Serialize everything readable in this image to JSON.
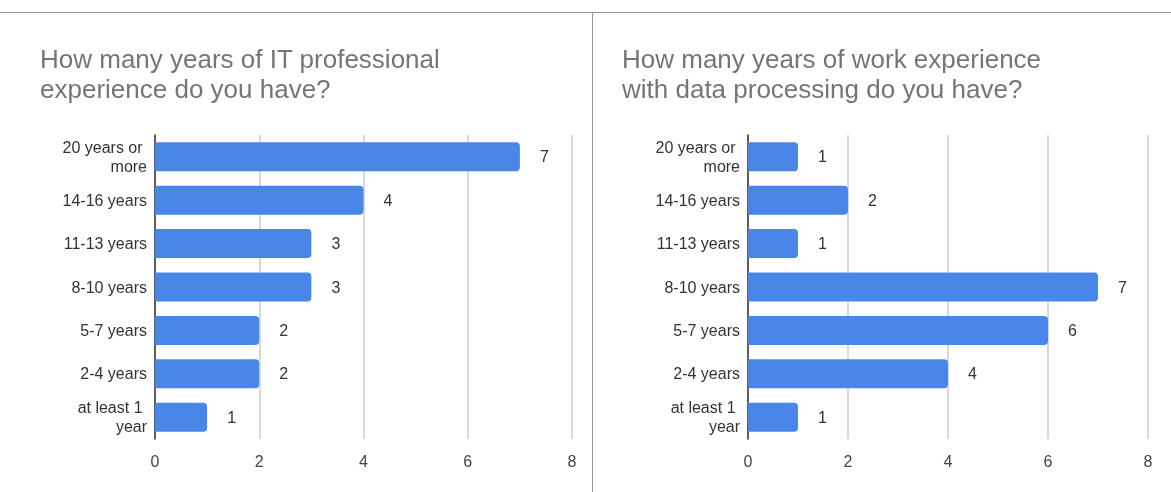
{
  "chart_data": [
    {
      "type": "bar",
      "orientation": "horizontal",
      "title": "How many years of IT professional experience do you have?",
      "categories": [
        "20 years or more",
        "14-16 years",
        "11-13 years",
        "8-10 years",
        "5-7 years",
        "2-4 years",
        "at least 1 year"
      ],
      "values": [
        7,
        4,
        3,
        3,
        2,
        2,
        1
      ],
      "color": "#4a86e8",
      "xlim": [
        0,
        8
      ],
      "xticks": [
        0,
        2,
        4,
        6,
        8
      ],
      "grid": "x",
      "data_labels": true
    },
    {
      "type": "bar",
      "orientation": "horizontal",
      "title": "How many years of work experience with data processing do you have?",
      "categories": [
        "20 years or more",
        "14-16 years",
        "11-13 years",
        "8-10 years",
        "5-7 years",
        "2-4 years",
        "at least 1 year"
      ],
      "values": [
        1,
        2,
        1,
        7,
        6,
        4,
        1
      ],
      "color": "#4a86e8",
      "xlim": [
        0,
        8
      ],
      "xticks": [
        0,
        2,
        4,
        6,
        8
      ],
      "grid": "x",
      "data_labels": true
    }
  ]
}
